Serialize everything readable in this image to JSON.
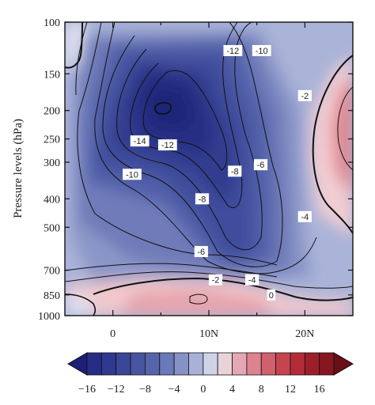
{
  "chart_data": {
    "type": "heatmap",
    "subtype": "filled-contour",
    "title": "",
    "xlabel": "",
    "ylabel": "Pressure levels (hPa)",
    "y_scale": "log",
    "y_reversed": true,
    "xlim": [
      -5,
      25
    ],
    "ylim": [
      1000,
      100
    ],
    "x_ticks": [
      {
        "value": 0,
        "label": "0"
      },
      {
        "value": 10,
        "label": "10N"
      },
      {
        "value": 20,
        "label": "20N"
      }
    ],
    "y_ticks": [
      {
        "value": 100,
        "label": "100"
      },
      {
        "value": 150,
        "label": "150"
      },
      {
        "value": 200,
        "label": "200"
      },
      {
        "value": 250,
        "label": "250"
      },
      {
        "value": 300,
        "label": "300"
      },
      {
        "value": 400,
        "label": "400"
      },
      {
        "value": 500,
        "label": "500"
      },
      {
        "value": 700,
        "label": "700"
      },
      {
        "value": 850,
        "label": "850"
      },
      {
        "value": 1000,
        "label": "1000"
      }
    ],
    "contour_levels": [
      -18,
      -16,
      -14,
      -12,
      -10,
      -8,
      -6,
      -4,
      -2,
      0,
      2,
      4,
      6,
      8,
      10,
      12,
      14,
      16,
      18
    ],
    "contour_labels": [
      {
        "text": "-12",
        "x": 12.5,
        "y": 125
      },
      {
        "text": "-10",
        "x": 15.5,
        "y": 125
      },
      {
        "text": "-2",
        "x": 20.0,
        "y": 178
      },
      {
        "text": "-14",
        "x": 2.8,
        "y": 254
      },
      {
        "text": "-12",
        "x": 5.7,
        "y": 262
      },
      {
        "text": "-10",
        "x": 2.0,
        "y": 330
      },
      {
        "text": "-8",
        "x": 12.7,
        "y": 322
      },
      {
        "text": "-6",
        "x": 15.4,
        "y": 306
      },
      {
        "text": "-8",
        "x": 9.3,
        "y": 400
      },
      {
        "text": "-4",
        "x": 20.0,
        "y": 460
      },
      {
        "text": "-6",
        "x": 9.2,
        "y": 605
      },
      {
        "text": "-2",
        "x": 10.7,
        "y": 755
      },
      {
        "text": "-4",
        "x": 14.5,
        "y": 755
      },
      {
        "text": "0",
        "x": 16.5,
        "y": 850
      }
    ],
    "colorbar": {
      "orientation": "horizontal",
      "extend": "both",
      "ticks": [
        -16,
        -12,
        -8,
        -4,
        0,
        4,
        8,
        12,
        16
      ],
      "tick_labels": [
        "−16",
        "−12",
        "−8",
        "−4",
        "0",
        "4",
        "8",
        "12",
        "16"
      ],
      "colors": [
        "#1c1f78",
        "#272d86",
        "#30398f",
        "#3a4698",
        "#4654a1",
        "#5565ab",
        "#6a79b7",
        "#8692c6",
        "#a9b1d7",
        "#cfd3e8",
        "#ead2d9",
        "#e4a7b3",
        "#dc8290",
        "#d1606d",
        "#c54450",
        "#b42c38",
        "#9e1f2b",
        "#861721",
        "#6a0f17"
      ]
    },
    "field_colors": {
      "background": "#aab3d8",
      "core": "#222a80",
      "positive_surface": "#f1c6ca",
      "positive_east": "#dc7c85"
    }
  }
}
